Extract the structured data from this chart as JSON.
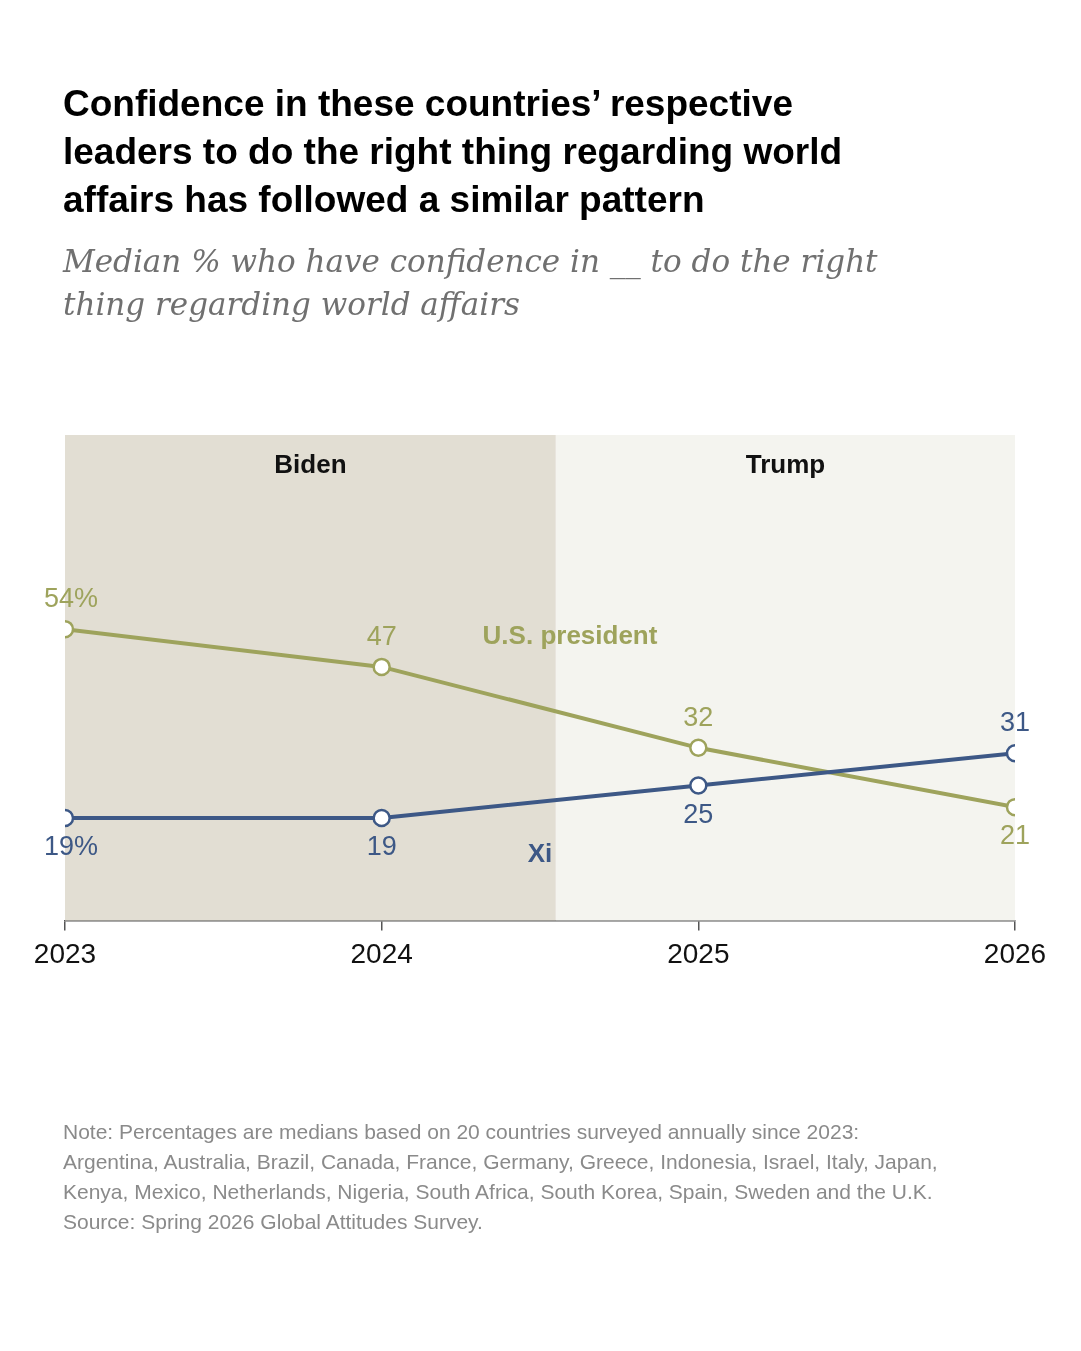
{
  "chart_data": {
    "type": "line",
    "title": "Confidence in these countries’ respective leaders to do the right thing regarding world affairs has followed a similar pattern",
    "subtitle": "Median % who have confidence in __ to do the right thing regarding world affairs",
    "x": [
      2023,
      2024,
      2025,
      2026
    ],
    "xlim": [
      2023,
      2026
    ],
    "xticks": [
      2023,
      2024,
      2025,
      2026
    ],
    "ylim": [
      0,
      90
    ],
    "tick_labels": "x",
    "grid": false,
    "legend": false,
    "marker": "circle",
    "line_style": "solid",
    "series": [
      {
        "name": "U.S. president",
        "color": "#9ea35c",
        "values": [
          54,
          47,
          32,
          21
        ],
        "value_labels": [
          "54%",
          "47",
          "32",
          "21"
        ]
      },
      {
        "name": "Xi",
        "color": "#3d5886",
        "values": [
          19,
          19,
          25,
          31
        ],
        "value_labels": [
          "19%",
          "19",
          "25",
          "31"
        ]
      }
    ],
    "bands": [
      {
        "axis": "x",
        "from": 2023,
        "to": 2024.55,
        "label": "Biden",
        "color": "#e2ded3"
      },
      {
        "axis": "x",
        "from": 2024.55,
        "to": 2026,
        "label": "Trump",
        "color": "#f4f4ef"
      }
    ],
    "annotations": [
      "Note: Percentages are medians based on 20 countries surveyed annually since 2023: Argentina, Australia, Brazil, Canada, France, Germany, Greece, Indonesia, Israel, Italy, Japan, Kenya, Mexico, Netherlands, Nigeria, South Africa, South Korea, Spain, Sweden and the U.K.",
      "Source: Spring 2026 Global Attitudes Survey."
    ]
  }
}
